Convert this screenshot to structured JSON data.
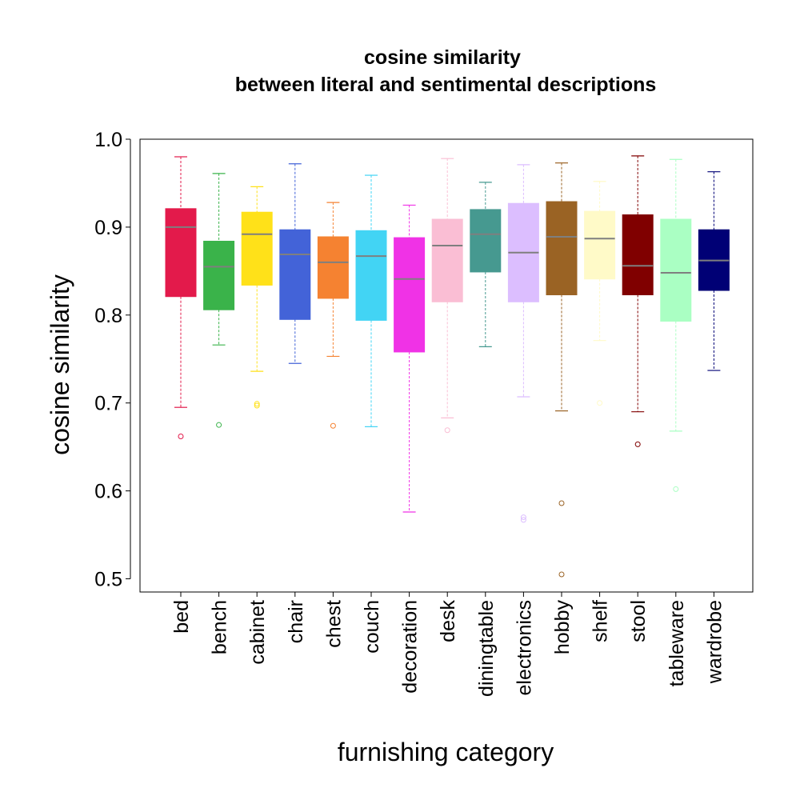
{
  "chart_data": {
    "type": "box",
    "title_line1": "cosine similarity",
    "title_line2": "between literal and sentimental descriptions",
    "xlabel": "furnishing category",
    "ylabel": "cosine similarity",
    "ylim": [
      0.485,
      1.0
    ],
    "yticks": [
      "0.5",
      "0.6",
      "0.7",
      "0.8",
      "0.9",
      "1.0"
    ],
    "grid": false,
    "legend": "none",
    "categories": [
      {
        "name": "bed",
        "color": "#E31A4B",
        "min": 0.695,
        "q1": 0.821,
        "median": 0.9,
        "q3": 0.921,
        "max": 0.98,
        "outliers": [
          0.662
        ]
      },
      {
        "name": "bench",
        "color": "#3AB34A",
        "min": 0.766,
        "q1": 0.806,
        "median": 0.855,
        "q3": 0.884,
        "max": 0.961,
        "outliers": [
          0.675
        ]
      },
      {
        "name": "cabinet",
        "color": "#FFE119",
        "min": 0.736,
        "q1": 0.834,
        "median": 0.892,
        "q3": 0.917,
        "max": 0.946,
        "outliers": [
          0.697,
          0.699
        ]
      },
      {
        "name": "chair",
        "color": "#4363D8",
        "min": 0.745,
        "q1": 0.795,
        "median": 0.869,
        "q3": 0.897,
        "max": 0.972,
        "outliers": []
      },
      {
        "name": "chest",
        "color": "#F58231",
        "min": 0.753,
        "q1": 0.819,
        "median": 0.86,
        "q3": 0.889,
        "max": 0.928,
        "outliers": [
          0.674
        ]
      },
      {
        "name": "couch",
        "color": "#42D4F4",
        "min": 0.673,
        "q1": 0.794,
        "median": 0.867,
        "q3": 0.896,
        "max": 0.959,
        "outliers": []
      },
      {
        "name": "decoration",
        "color": "#F032E6",
        "min": 0.576,
        "q1": 0.758,
        "median": 0.841,
        "q3": 0.888,
        "max": 0.925,
        "outliers": []
      },
      {
        "name": "desk",
        "color": "#FABED4",
        "min": 0.683,
        "q1": 0.815,
        "median": 0.879,
        "q3": 0.909,
        "max": 0.978,
        "outliers": [
          0.669
        ]
      },
      {
        "name": "diningtable",
        "color": "#469990",
        "min": 0.764,
        "q1": 0.849,
        "median": 0.892,
        "q3": 0.92,
        "max": 0.951,
        "outliers": []
      },
      {
        "name": "electronics",
        "color": "#DCBEFF",
        "min": 0.707,
        "q1": 0.815,
        "median": 0.871,
        "q3": 0.927,
        "max": 0.971,
        "outliers": [
          0.567,
          0.57
        ]
      },
      {
        "name": "hobby",
        "color": "#9A6324",
        "min": 0.691,
        "q1": 0.823,
        "median": 0.889,
        "q3": 0.929,
        "max": 0.973,
        "outliers": [
          0.586,
          0.505
        ]
      },
      {
        "name": "shelf",
        "color": "#FFFAC8",
        "min": 0.771,
        "q1": 0.841,
        "median": 0.887,
        "q3": 0.918,
        "max": 0.952,
        "outliers": [
          0.7
        ]
      },
      {
        "name": "stool",
        "color": "#800000",
        "min": 0.69,
        "q1": 0.823,
        "median": 0.856,
        "q3": 0.914,
        "max": 0.981,
        "outliers": [
          0.653
        ]
      },
      {
        "name": "tableware",
        "color": "#AAFFC3",
        "min": 0.668,
        "q1": 0.793,
        "median": 0.848,
        "q3": 0.909,
        "max": 0.977,
        "outliers": [
          0.602
        ]
      },
      {
        "name": "wardrobe",
        "color": "#000075",
        "min": 0.737,
        "q1": 0.828,
        "median": 0.862,
        "q3": 0.897,
        "max": 0.963,
        "outliers": []
      }
    ]
  }
}
